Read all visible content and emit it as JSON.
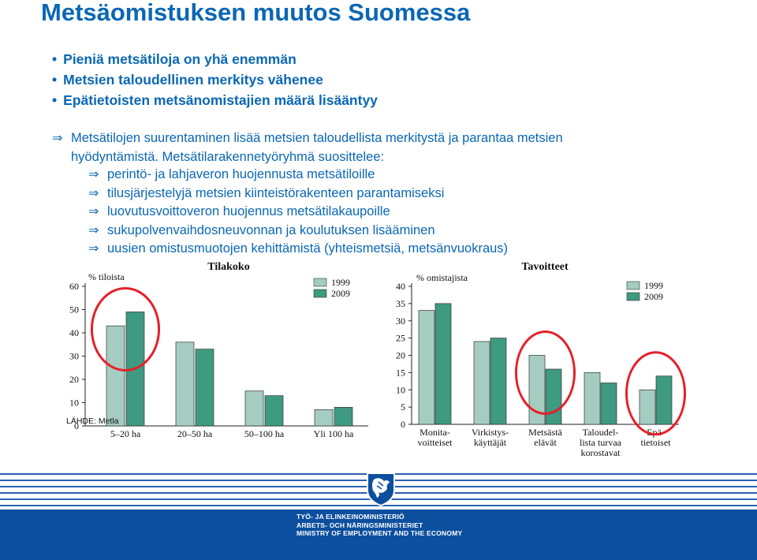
{
  "title": "Metsäomistuksen muutos Suomessa",
  "bullets": [
    "Pieniä metsätiloja on yhä enemmän",
    "Metsien taloudellinen merkitys vähenee",
    "Epätietoisten metsänomistajien määrä lisääntyy"
  ],
  "arrow_glyph": "⇒",
  "para1_line1": "Metsätilojen suurentaminen lisää metsien taloudellista merkitystä ja parantaa metsien",
  "para1_line2": "hyödyntämistä.  Metsätilarakennetyöryhmä suosittelee:",
  "recommendations": [
    "perintö- ja lahjaveron huojennusta metsätiloille",
    "tilusjärjestelyjä metsien kiinteistörakenteen parantamiseksi",
    "luovutusvoittoveron huojennus metsätilakaupoille",
    "sukupolvenvaihdosneuvonnan ja koulutuksen lisääminen",
    "uusien omistusmuotojen kehittämistä (yhteismetsiä, metsänvuokraus)"
  ],
  "colors": {
    "title": "#0a67b4",
    "bar_1999": "#a5ccc0",
    "bar_2009": "#3e9a80",
    "highlight_circle": "#e5202a",
    "footer_band": "#0c4f9e"
  },
  "chart_data": [
    {
      "type": "bar",
      "title": "Tilakoko",
      "ylabel": "% tiloista",
      "categories": [
        "5–20 ha",
        "20–50 ha",
        "50–100 ha",
        "Yli 100 ha"
      ],
      "series": [
        {
          "name": "1999",
          "values": [
            43,
            36,
            15,
            7
          ]
        },
        {
          "name": "2009",
          "values": [
            49,
            33,
            13,
            8
          ]
        }
      ],
      "ylim": [
        0,
        60
      ],
      "yticks": [
        0,
        10,
        20,
        30,
        40,
        50,
        60
      ],
      "highlighted": [
        "5–20 ha"
      ],
      "legend": "top-right",
      "grid": false
    },
    {
      "type": "bar",
      "title": "Tavoitteet",
      "ylabel": "% omistajista",
      "categories": [
        "Monita-\nvoitteiset",
        "Virkistys-\nkäyttäjät",
        "Metsästä\nelävät",
        "Taloudel-\nlista turvaa\nkorostavat",
        "Epä-\ntietoiset"
      ],
      "series": [
        {
          "name": "1999",
          "values": [
            33,
            24,
            20,
            15,
            10
          ]
        },
        {
          "name": "2009",
          "values": [
            35,
            25,
            16,
            12,
            14
          ]
        }
      ],
      "ylim": [
        0,
        40
      ],
      "yticks": [
        0,
        5,
        10,
        15,
        20,
        25,
        30,
        35,
        40
      ],
      "highlighted": [
        "Metsästä\nelävät",
        "Epä-\ntietoiset"
      ],
      "legend": "top-right",
      "grid": false
    }
  ],
  "source": "LÄHDE: Metla",
  "ministry_lines": [
    "TYÖ- JA ELINKEINOMINISTERIÖ",
    "ARBETS- OCH NÄRINGSMINISTERIET",
    "MINISTRY OF EMPLOYMENT AND THE ECONOMY"
  ]
}
